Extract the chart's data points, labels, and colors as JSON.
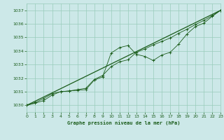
{
  "title": "Graphe pression niveau de la mer (hPa)",
  "bg_color": "#cce8e8",
  "grid_color": "#99ccbb",
  "line_color": "#1a5c1a",
  "x_min": 0,
  "x_max": 23,
  "y_min": 1029.5,
  "y_max": 1037.5,
  "y_ticks": [
    1030,
    1031,
    1032,
    1033,
    1034,
    1035,
    1036,
    1037
  ],
  "x_ticks": [
    0,
    1,
    2,
    3,
    4,
    5,
    6,
    7,
    8,
    9,
    10,
    11,
    12,
    13,
    14,
    15,
    16,
    17,
    18,
    19,
    20,
    21,
    22,
    23
  ],
  "series_smooth": {
    "x": [
      0,
      23
    ],
    "y": [
      1030.0,
      1037.0
    ]
  },
  "series_marked1": {
    "x": [
      0,
      1,
      2,
      3,
      4,
      5,
      6,
      7,
      8,
      9,
      10,
      11,
      12,
      13,
      14,
      15,
      16,
      17,
      18,
      19,
      20,
      21,
      22,
      23
    ],
    "y": [
      1030.0,
      1030.15,
      1030.35,
      1030.75,
      1031.0,
      1031.05,
      1031.1,
      1031.15,
      1031.85,
      1032.1,
      1033.85,
      1034.25,
      1034.4,
      1033.75,
      1033.6,
      1033.3,
      1033.7,
      1033.9,
      1034.5,
      1035.25,
      1035.8,
      1036.05,
      1036.55,
      1037.0
    ]
  },
  "series_marked2": {
    "x": [
      0,
      1,
      2,
      3,
      4,
      5,
      6,
      7,
      8,
      9,
      10,
      11,
      12,
      13,
      14,
      15,
      16,
      17,
      18,
      19,
      20,
      21,
      22,
      23
    ],
    "y": [
      1030.0,
      1030.2,
      1030.5,
      1030.85,
      1031.0,
      1031.05,
      1031.15,
      1031.25,
      1031.9,
      1032.2,
      1032.85,
      1033.2,
      1033.35,
      1033.9,
      1034.15,
      1034.45,
      1034.7,
      1034.95,
      1035.3,
      1035.6,
      1035.95,
      1036.25,
      1036.6,
      1037.0
    ]
  }
}
